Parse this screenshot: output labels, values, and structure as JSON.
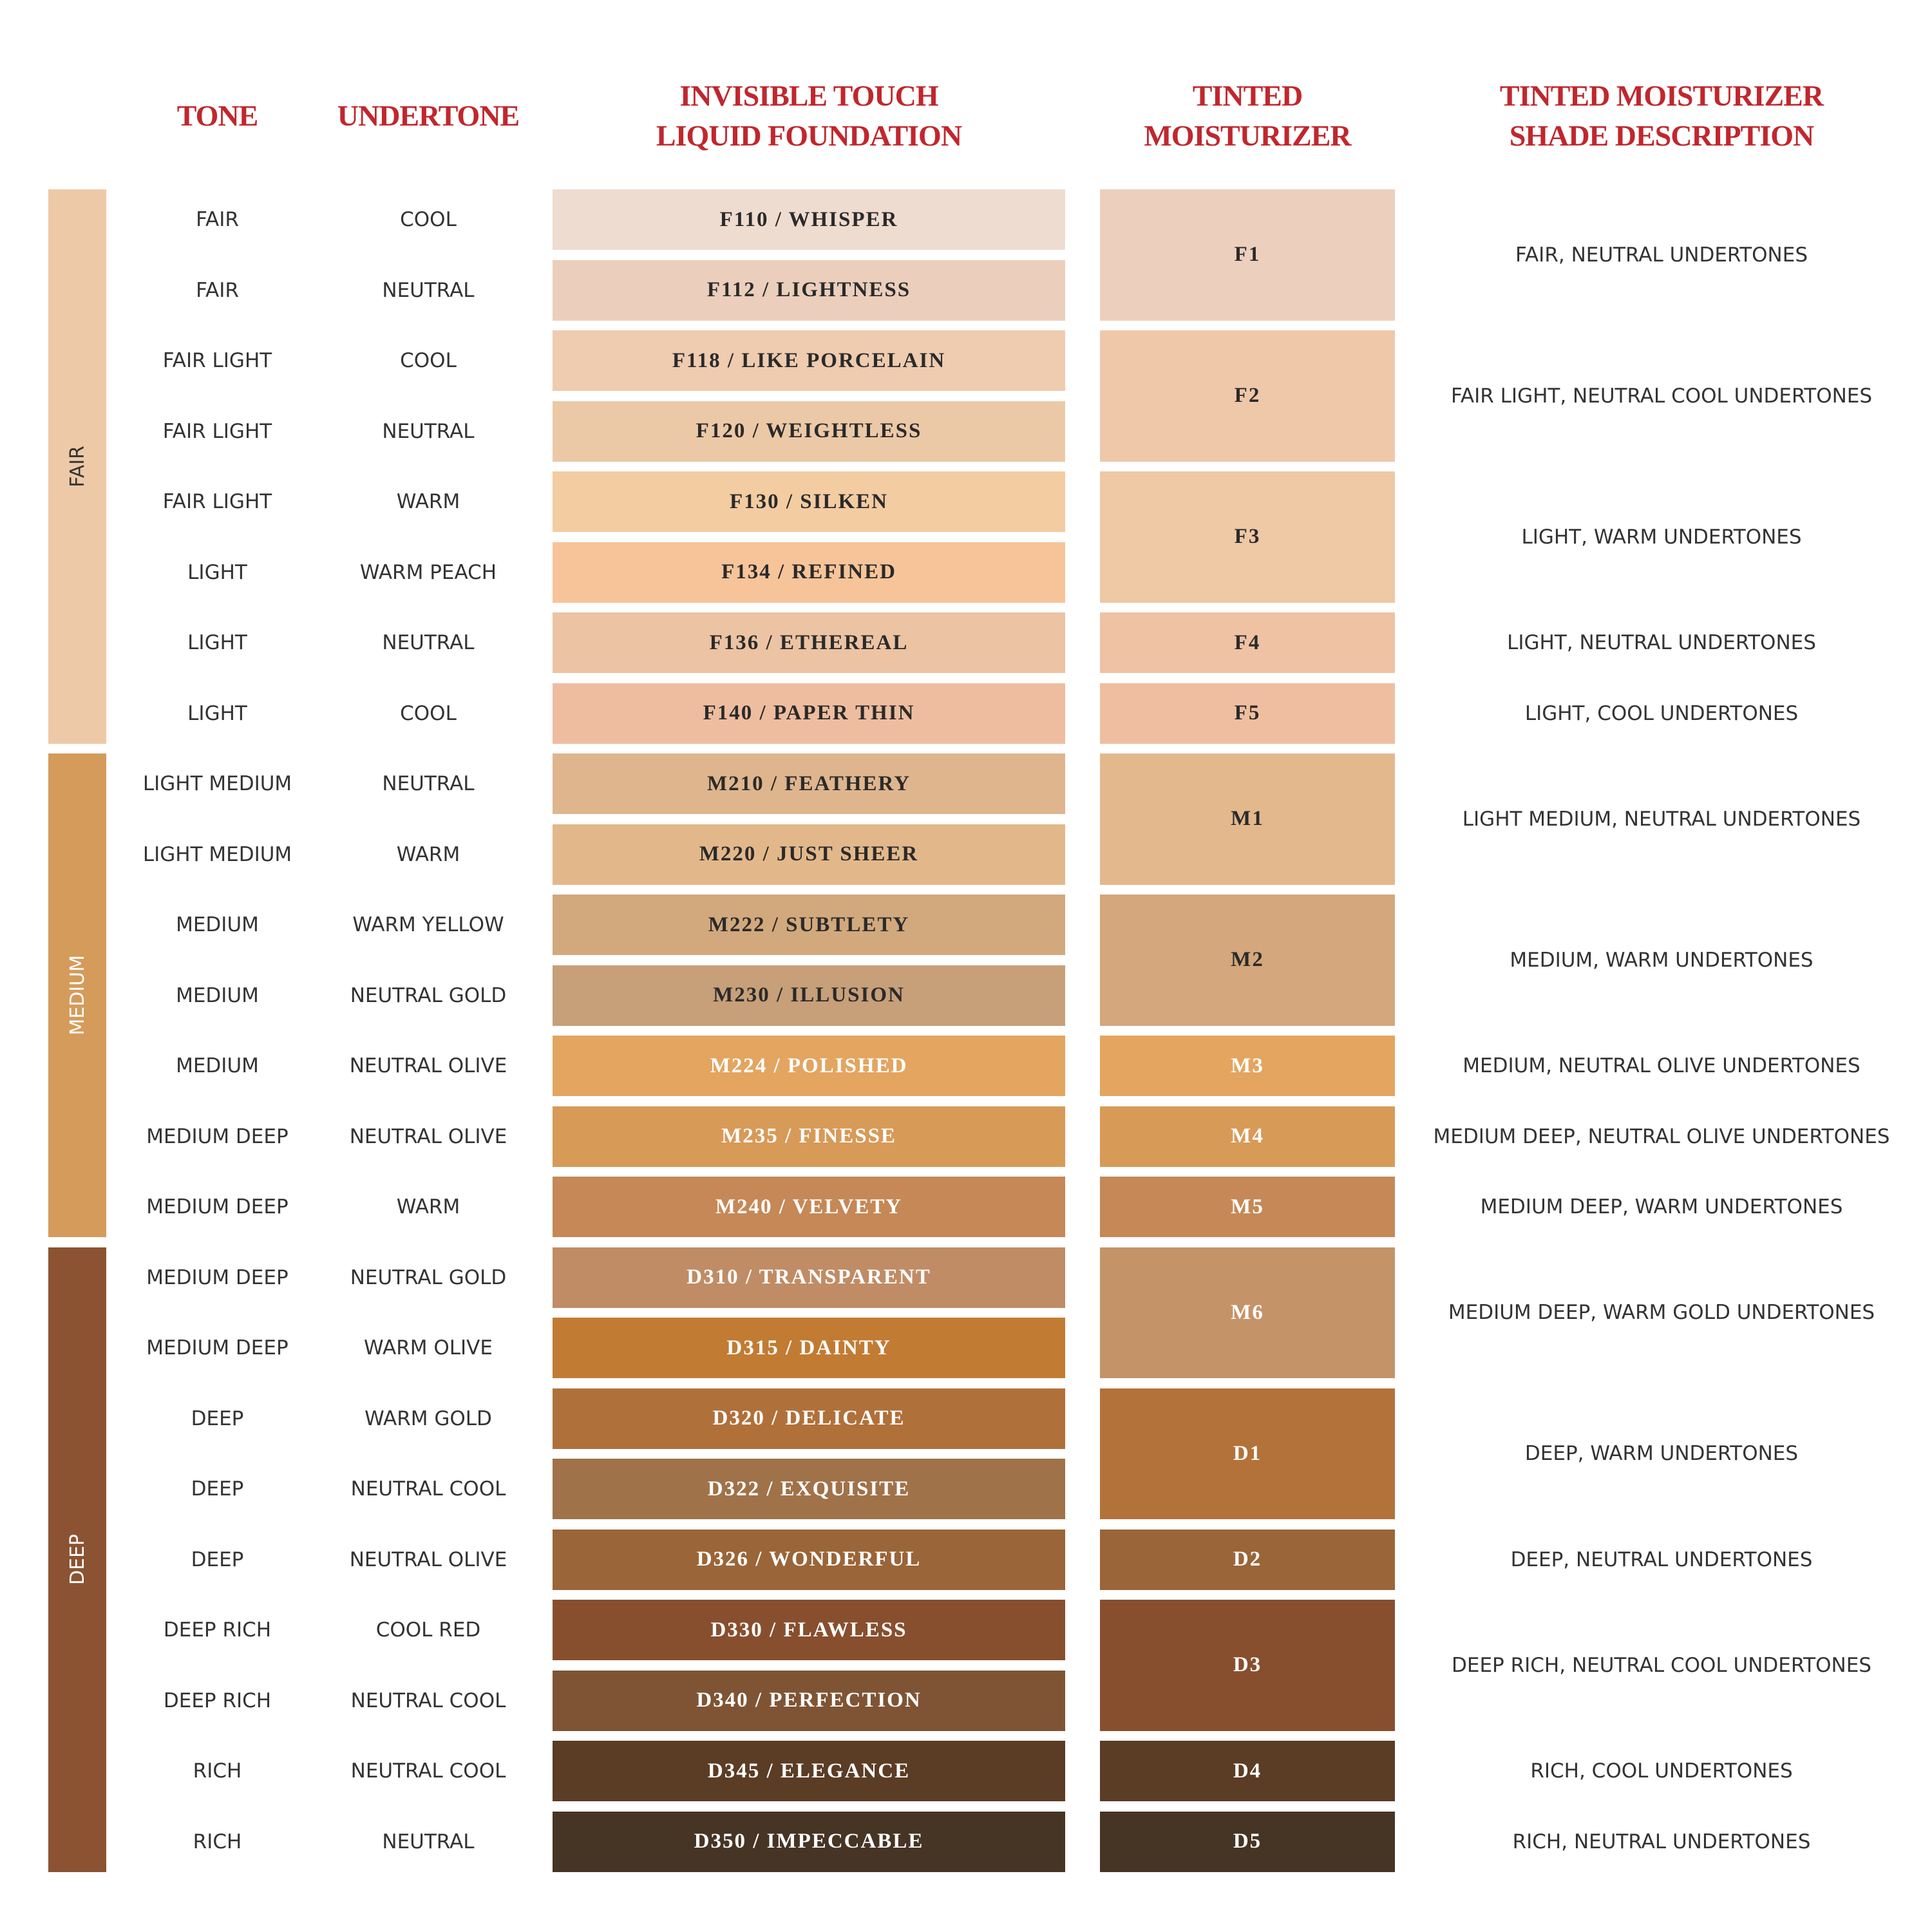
{
  "headers": {
    "tone": [
      "TONE"
    ],
    "undertone": [
      "UNDERTONE"
    ],
    "foundation": [
      "INVISIBLE TOUCH",
      "LIQUID FOUNDATION"
    ],
    "moisturizer": [
      "TINTED",
      "MOISTURIZER"
    ],
    "description": [
      "TINTED MOISTURIZER",
      "SHADE DESCRIPTION"
    ]
  },
  "groups": [
    {
      "label": "FAIR",
      "color": "#eec9a7",
      "text_color": "#333333",
      "moisturizers": [
        {
          "shade": "F1",
          "description": "FAIR, NEUTRAL UNDERTONES",
          "color": "#ecd0bd",
          "text_color": "#2a2a2a",
          "rows": [
            {
              "tone": "FAIR",
              "undertone": "COOL",
              "foundation": "F110 / WHISPER",
              "color": "#efdcd0",
              "text_color": "#2a2a2a"
            },
            {
              "tone": "FAIR",
              "undertone": "NEUTRAL",
              "foundation": "F112 / LIGHTNESS",
              "color": "#ebcfbc",
              "text_color": "#2a2a2a"
            }
          ]
        },
        {
          "shade": "F2",
          "description": "FAIR LIGHT, NEUTRAL COOL UNDERTONES",
          "color": "#efc8aa",
          "text_color": "#2a2a2a",
          "rows": [
            {
              "tone": "FAIR LIGHT",
              "undertone": "COOL",
              "foundation": "F118 / LIKE PORCELAIN",
              "color": "#efcbb0",
              "text_color": "#2a2a2a"
            },
            {
              "tone": "FAIR LIGHT",
              "undertone": "NEUTRAL",
              "foundation": "F120 / WEIGHTLESS",
              "color": "#ecc9a6",
              "text_color": "#2a2a2a"
            }
          ]
        },
        {
          "shade": "F3",
          "description": "LIGHT, WARM UNDERTONES",
          "color": "#efc8a5",
          "text_color": "#2a2a2a",
          "rows": [
            {
              "tone": "FAIR LIGHT",
              "undertone": "WARM",
              "foundation": "F130 / SILKEN",
              "color": "#f3cca2",
              "text_color": "#2a2a2a"
            },
            {
              "tone": "LIGHT",
              "undertone": "WARM PEACH",
              "foundation": "F134 / REFINED",
              "color": "#f7c49a",
              "text_color": "#2a2a2a"
            }
          ]
        },
        {
          "shade": "F4",
          "description": "LIGHT, NEUTRAL UNDERTONES",
          "color": "#eec2a3",
          "text_color": "#2a2a2a",
          "rows": [
            {
              "tone": "LIGHT",
              "undertone": "NEUTRAL",
              "foundation": "F136 / ETHEREAL",
              "color": "#ecc3a3",
              "text_color": "#2a2a2a"
            }
          ]
        },
        {
          "shade": "F5",
          "description": "LIGHT, COOL UNDERTONES",
          "color": "#efbea0",
          "text_color": "#2a2a2a",
          "rows": [
            {
              "tone": "LIGHT",
              "undertone": "COOL",
              "foundation": "F140 / PAPER THIN",
              "color": "#eebda0",
              "text_color": "#2a2a2a"
            }
          ]
        }
      ]
    },
    {
      "label": "MEDIUM",
      "color": "#d59b5a",
      "text_color": "#ffffff",
      "moisturizers": [
        {
          "shade": "M1",
          "description": "LIGHT MEDIUM, NEUTRAL UNDERTONES",
          "color": "#e4b88d",
          "text_color": "#2a2a2a",
          "rows": [
            {
              "tone": "LIGHT MEDIUM",
              "undertone": "NEUTRAL",
              "foundation": "M210 / FEATHERY",
              "color": "#dfb58e",
              "text_color": "#2a2a2a"
            },
            {
              "tone": "LIGHT MEDIUM",
              "undertone": "WARM",
              "foundation": "M220 / JUST SHEER",
              "color": "#e2b88b",
              "text_color": "#2a2a2a"
            }
          ]
        },
        {
          "shade": "M2",
          "description": "MEDIUM, WARM UNDERTONES",
          "color": "#d4a77c",
          "text_color": "#2a2a2a",
          "rows": [
            {
              "tone": "MEDIUM",
              "undertone": "WARM YELLOW",
              "foundation": "M222 / SUBTLETY",
              "color": "#d2a87d",
              "text_color": "#2a2a2a"
            },
            {
              "tone": "MEDIUM",
              "undertone": "NEUTRAL GOLD",
              "foundation": "M230 / ILLUSION",
              "color": "#c79f79",
              "text_color": "#2a2a2a"
            }
          ]
        },
        {
          "shade": "M3",
          "description": "MEDIUM, NEUTRAL OLIVE UNDERTONES",
          "color": "#e3a560",
          "text_color": "#ffffff",
          "rows": [
            {
              "tone": "MEDIUM",
              "undertone": "NEUTRAL OLIVE",
              "foundation": "M224 / POLISHED",
              "color": "#e3a560",
              "text_color": "#ffffff"
            }
          ]
        },
        {
          "shade": "M4",
          "description": "MEDIUM DEEP, NEUTRAL OLIVE UNDERTONES",
          "color": "#d89a57",
          "text_color": "#ffffff",
          "rows": [
            {
              "tone": "MEDIUM DEEP",
              "undertone": "NEUTRAL OLIVE",
              "foundation": "M235 / FINESSE",
              "color": "#d89a57",
              "text_color": "#ffffff"
            }
          ]
        },
        {
          "shade": "M5",
          "description": "MEDIUM DEEP, WARM UNDERTONES",
          "color": "#c58856",
          "text_color": "#ffffff",
          "rows": [
            {
              "tone": "MEDIUM DEEP",
              "undertone": "WARM",
              "foundation": "M240 / VELVETY",
              "color": "#c58856",
              "text_color": "#ffffff"
            }
          ]
        }
      ]
    },
    {
      "label": "DEEP",
      "color": "#8b5331",
      "text_color": "#ffffff",
      "moisturizers": [
        {
          "shade": "M6",
          "description": "MEDIUM DEEP, WARM GOLD UNDERTONES",
          "color": "#c49368",
          "text_color": "#ffffff",
          "rows": [
            {
              "tone": "MEDIUM DEEP",
              "undertone": "NEUTRAL GOLD",
              "foundation": "D310 / TRANSPARENT",
              "color": "#c08c65",
              "text_color": "#ffffff"
            },
            {
              "tone": "MEDIUM DEEP",
              "undertone": "WARM OLIVE",
              "foundation": "D315 / DAINTY",
              "color": "#c27b33",
              "text_color": "#ffffff"
            }
          ]
        },
        {
          "shade": "D1",
          "description": "DEEP, WARM UNDERTONES",
          "color": "#b37239",
          "text_color": "#ffffff",
          "rows": [
            {
              "tone": "DEEP",
              "undertone": "WARM GOLD",
              "foundation": "D320 / DELICATE",
              "color": "#b0703a",
              "text_color": "#ffffff"
            },
            {
              "tone": "DEEP",
              "undertone": "NEUTRAL COOL",
              "foundation": "D322 / EXQUISITE",
              "color": "#a07249",
              "text_color": "#ffffff"
            }
          ]
        },
        {
          "shade": "D2",
          "description": "DEEP, NEUTRAL UNDERTONES",
          "color": "#9a6538",
          "text_color": "#ffffff",
          "rows": [
            {
              "tone": "DEEP",
              "undertone": "NEUTRAL OLIVE",
              "foundation": "D326 / WONDERFUL",
              "color": "#9a6538",
              "text_color": "#ffffff"
            }
          ]
        },
        {
          "shade": "D3",
          "description": "DEEP RICH, NEUTRAL COOL UNDERTONES",
          "color": "#884f2e",
          "text_color": "#ffffff",
          "rows": [
            {
              "tone": "DEEP RICH",
              "undertone": "COOL RED",
              "foundation": "D330 / FLAWLESS",
              "color": "#884f2e",
              "text_color": "#ffffff"
            },
            {
              "tone": "DEEP RICH",
              "undertone": "NEUTRAL COOL",
              "foundation": "D340 / PERFECTION",
              "color": "#7f5435",
              "text_color": "#ffffff"
            }
          ]
        },
        {
          "shade": "D4",
          "description": "RICH, COOL UNDERTONES",
          "color": "#5b3c25",
          "text_color": "#ffffff",
          "rows": [
            {
              "tone": "RICH",
              "undertone": "NEUTRAL COOL",
              "foundation": "D345 / ELEGANCE",
              "color": "#5b3c25",
              "text_color": "#ffffff"
            }
          ]
        },
        {
          "shade": "D5",
          "description": "RICH, NEUTRAL UNDERTONES",
          "color": "#463425",
          "text_color": "#ffffff",
          "rows": [
            {
              "tone": "RICH",
              "undertone": "NEUTRAL",
              "foundation": "D350 / IMPECCABLE",
              "color": "#463425",
              "text_color": "#ffffff"
            }
          ]
        }
      ]
    }
  ]
}
